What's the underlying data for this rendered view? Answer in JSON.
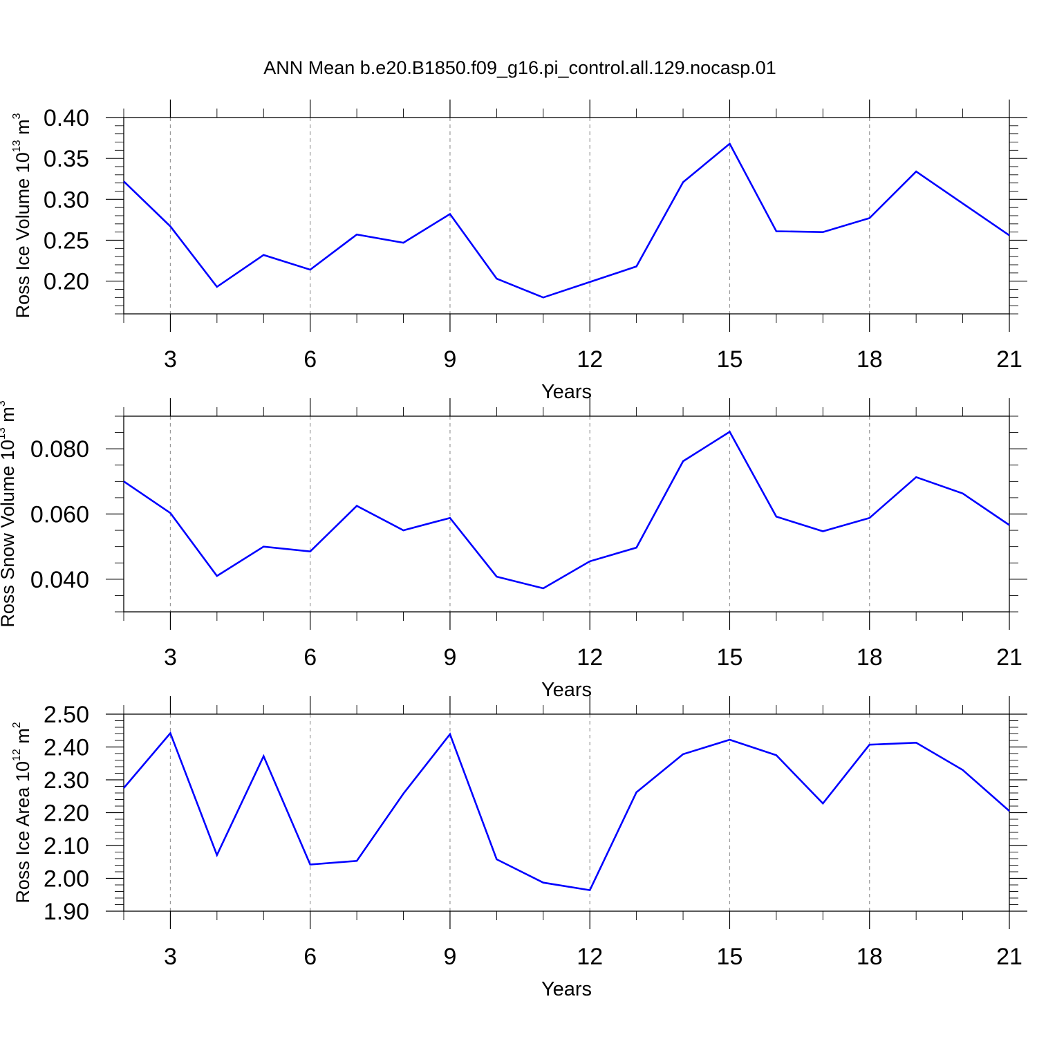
{
  "title": "ANN Mean b.e20.B1850.f09_g16.pi_control.all.129.nocasp.01",
  "line_color": "#0000ff",
  "chart_data": [
    {
      "type": "line",
      "ylabel": {
        "text": "Ross Ice Volume 10",
        "exp": "13",
        "unit": " m",
        "unit_exp": "3"
      },
      "xlabel": "Years",
      "xlim": [
        2,
        21
      ],
      "ylim": [
        0.16,
        0.4
      ],
      "x_ticks": [
        3,
        6,
        9,
        12,
        15,
        18,
        21
      ],
      "x_tick_labels": [
        "3",
        "6",
        "9",
        "12",
        "15",
        "18",
        "21"
      ],
      "y_ticks": [
        0.2,
        0.25,
        0.3,
        0.35,
        0.4
      ],
      "y_tick_labels": [
        "0.20",
        "0.25",
        "0.30",
        "0.35",
        "0.40"
      ],
      "y_minor_step": 0.01,
      "grid": "vertical dashed at major x ticks",
      "series": [
        {
          "x": [
            2,
            3,
            4,
            5,
            6,
            7,
            8,
            9,
            10,
            11,
            12,
            13,
            14,
            15,
            16,
            17,
            18,
            19,
            20,
            21
          ],
          "values": [
            0.322,
            0.267,
            0.193,
            0.232,
            0.214,
            0.257,
            0.247,
            0.282,
            0.203,
            0.18,
            0.199,
            0.218,
            0.321,
            0.368,
            0.261,
            0.26,
            0.277,
            0.334,
            0.295,
            0.256
          ]
        }
      ]
    },
    {
      "type": "line",
      "ylabel": {
        "text": "Ross Snow Volume 10",
        "exp": "13",
        "unit": " m",
        "unit_exp": "3"
      },
      "xlabel": "Years",
      "xlim": [
        2,
        21
      ],
      "ylim": [
        0.03,
        0.09
      ],
      "x_ticks": [
        3,
        6,
        9,
        12,
        15,
        18,
        21
      ],
      "x_tick_labels": [
        "3",
        "6",
        "9",
        "12",
        "15",
        "18",
        "21"
      ],
      "y_ticks": [
        0.04,
        0.06,
        0.08
      ],
      "y_tick_labels": [
        "0.040",
        "0.060",
        "0.080"
      ],
      "y_minor_step": 0.005,
      "grid": "vertical dashed at major x ticks",
      "series": [
        {
          "x": [
            2,
            3,
            4,
            5,
            6,
            7,
            8,
            9,
            10,
            11,
            12,
            13,
            14,
            15,
            16,
            17,
            18,
            19,
            20,
            21
          ],
          "values": [
            0.07,
            0.0603,
            0.041,
            0.05,
            0.0485,
            0.0625,
            0.055,
            0.0588,
            0.0408,
            0.0372,
            0.0455,
            0.0497,
            0.0762,
            0.0852,
            0.0592,
            0.0547,
            0.0588,
            0.0713,
            0.0663,
            0.0566
          ]
        }
      ]
    },
    {
      "type": "line",
      "ylabel": {
        "text": "Ross Ice Area 10",
        "exp": "12",
        "unit": " m",
        "unit_exp": "2"
      },
      "xlabel": "Years",
      "xlim": [
        2,
        21
      ],
      "ylim": [
        1.9,
        2.5
      ],
      "x_ticks": [
        3,
        6,
        9,
        12,
        15,
        18,
        21
      ],
      "x_tick_labels": [
        "3",
        "6",
        "9",
        "12",
        "15",
        "18",
        "21"
      ],
      "y_ticks": [
        1.9,
        2.0,
        2.1,
        2.2,
        2.3,
        2.4,
        2.5
      ],
      "y_tick_labels": [
        "1.90",
        "2.00",
        "2.10",
        "2.20",
        "2.30",
        "2.40",
        "2.50"
      ],
      "y_minor_step": 0.02,
      "grid": "vertical dashed at major x ticks",
      "series": [
        {
          "x": [
            2,
            3,
            4,
            5,
            6,
            7,
            8,
            9,
            10,
            11,
            12,
            13,
            14,
            15,
            16,
            17,
            18,
            19,
            20,
            21
          ],
          "values": [
            2.275,
            2.442,
            2.071,
            2.372,
            2.042,
            2.053,
            2.258,
            2.439,
            2.058,
            1.987,
            1.964,
            2.262,
            2.378,
            2.422,
            2.375,
            2.228,
            2.407,
            2.413,
            2.33,
            2.205
          ]
        }
      ]
    }
  ]
}
